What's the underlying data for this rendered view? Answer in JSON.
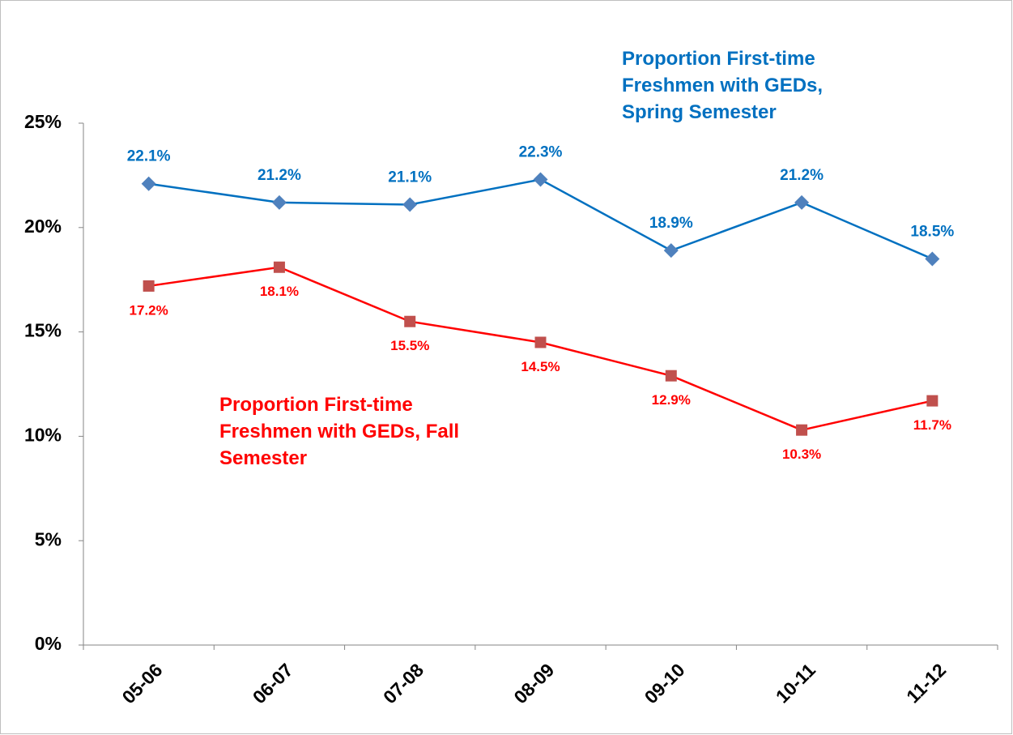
{
  "chart_data": {
    "type": "line",
    "categories": [
      "05-06",
      "06-07",
      "07-08",
      "08-09",
      "09-10",
      "10-11",
      "11-12"
    ],
    "series": [
      {
        "name": "Proportion First-time Freshmen with GEDs, Spring Semester",
        "color": "#0070c0",
        "marker": "diamond",
        "marker_color": "#4f81bd",
        "values": [
          22.1,
          21.2,
          21.1,
          22.3,
          18.9,
          21.2,
          18.5
        ],
        "value_labels": [
          "22.1%",
          "21.2%",
          "21.1%",
          "22.3%",
          "18.9%",
          "21.2%",
          "18.5%"
        ]
      },
      {
        "name": "Proportion First-time Freshmen with GEDs, Fall Semester",
        "color": "#ff0000",
        "marker": "square",
        "marker_color": "#c0504d",
        "values": [
          17.2,
          18.1,
          15.5,
          14.5,
          12.9,
          10.3,
          11.7
        ],
        "value_labels": [
          "17.2%",
          "18.1%",
          "15.5%",
          "14.5%",
          "12.9%",
          "10.3%",
          "11.7%"
        ]
      }
    ],
    "ylim": [
      0,
      25
    ],
    "yticks": [
      {
        "value": 0,
        "label": "0%"
      },
      {
        "value": 5,
        "label": "5%"
      },
      {
        "value": 10,
        "label": "10%"
      },
      {
        "value": 15,
        "label": "15%"
      },
      {
        "value": 20,
        "label": "20%"
      },
      {
        "value": 25,
        "label": "25%"
      }
    ]
  }
}
